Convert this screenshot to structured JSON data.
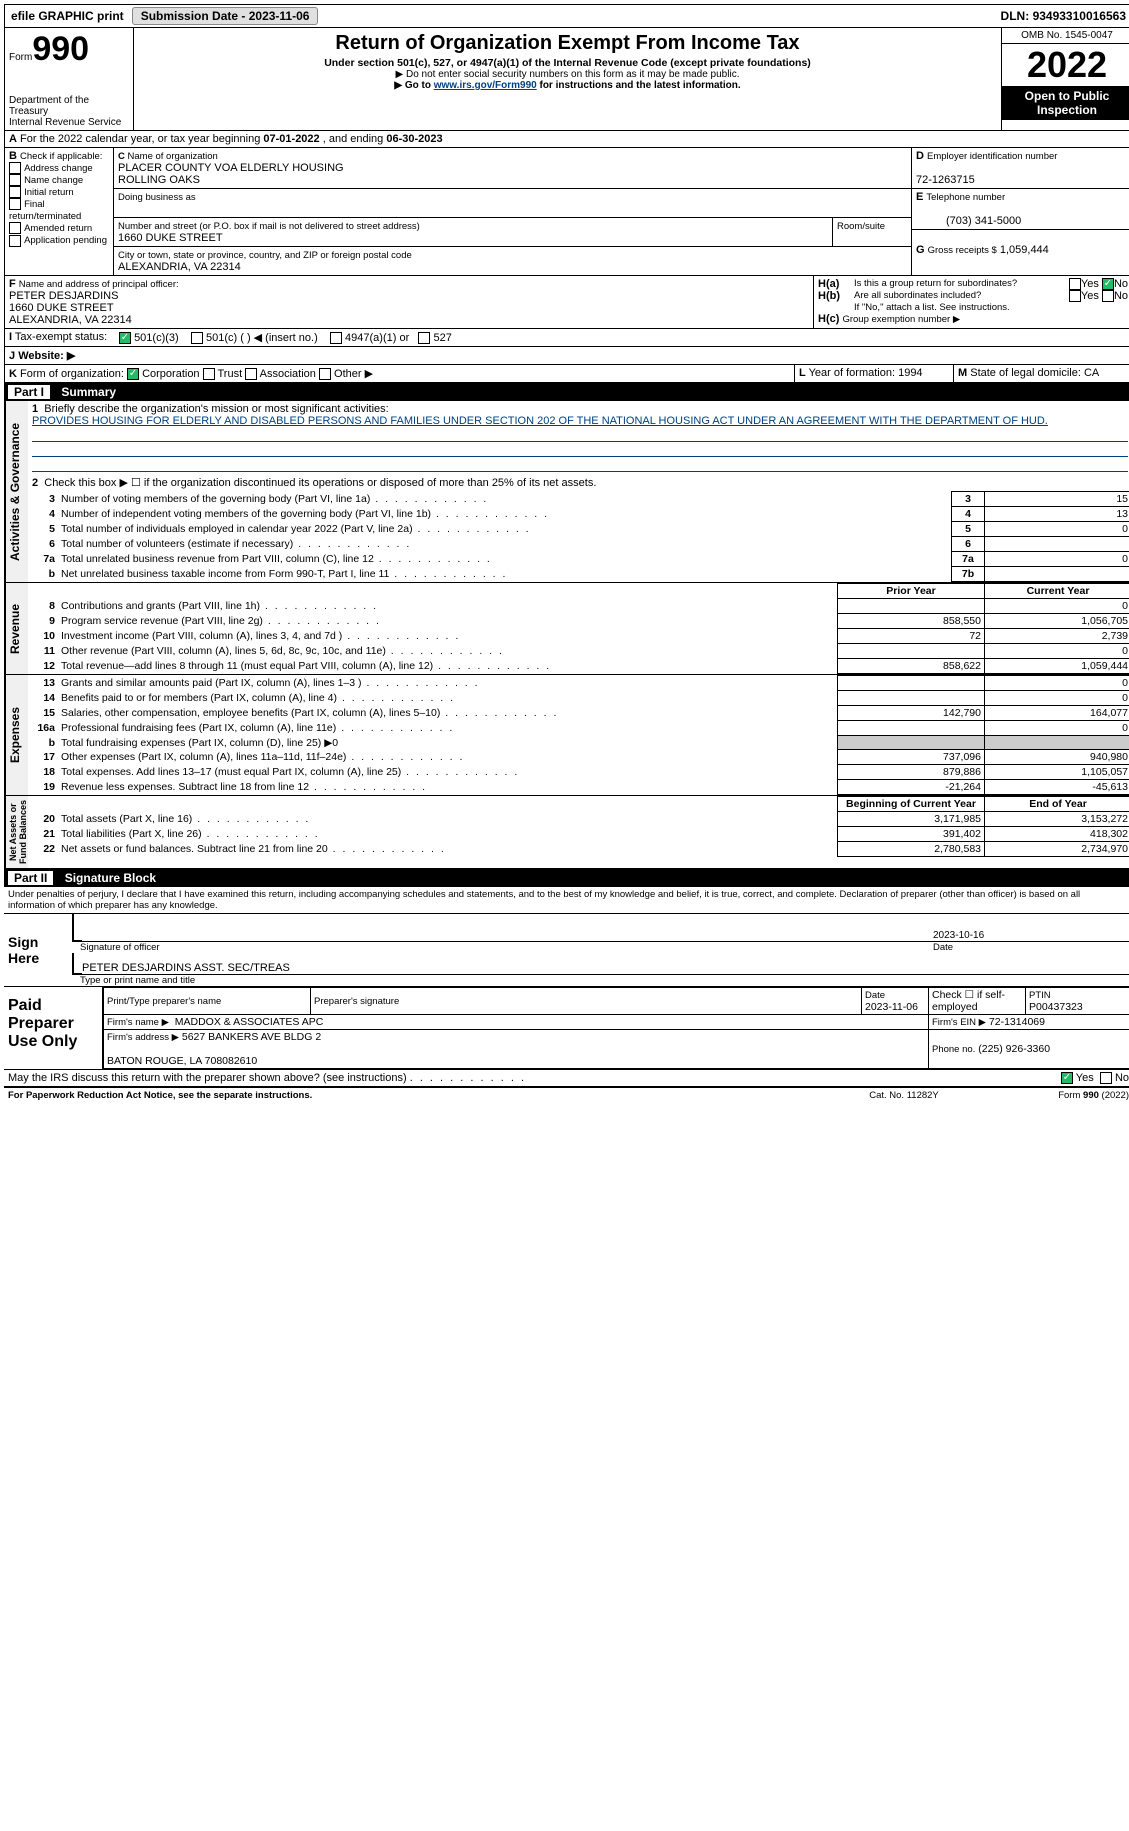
{
  "topbar": {
    "efile": "efile GRAPHIC print",
    "submission_label": "Submission Date -",
    "submission_date": "2023-11-06",
    "dln_label": "DLN:",
    "dln": "93493310016563"
  },
  "header": {
    "form_label": "Form",
    "form_number": "990",
    "dept": "Department of the Treasury\nInternal Revenue Service",
    "title": "Return of Organization Exempt From Income Tax",
    "subtitle": "Under section 501(c), 527, or 4947(a)(1) of the Internal Revenue Code (except private foundations)",
    "note1": "▶ Do not enter social security numbers on this form as it may be made public.",
    "note2_pre": "▶ Go to ",
    "note2_link": "www.irs.gov/Form990",
    "note2_post": " for instructions and the latest information.",
    "omb_label": "OMB No. 1545-0047",
    "year": "2022",
    "open": "Open to Public Inspection"
  },
  "A": {
    "text": "For the 2022 calendar year, or tax year beginning ",
    "begin": "07-01-2022",
    "mid": ", and ending ",
    "end": "06-30-2023"
  },
  "B": {
    "label": "Check if applicable:",
    "items": [
      "Address change",
      "Name change",
      "Initial return",
      "Final return/terminated",
      "Amended return",
      "Application pending"
    ]
  },
  "C": {
    "name_label": "Name of organization",
    "name": "PLACER COUNTY VOA ELDERLY HOUSING\nROLLING OAKS",
    "dba_label": "Doing business as",
    "addr_label": "Number and street (or P.O. box if mail is not delivered to street address)",
    "addr": "1660 DUKE STREET",
    "room_label": "Room/suite",
    "city_label": "City or town, state or province, country, and ZIP or foreign postal code",
    "city": "ALEXANDRIA, VA  22314"
  },
  "D": {
    "label": "Employer identification number",
    "val": "72-1263715"
  },
  "E": {
    "label": "Telephone number",
    "val": "(703) 341-5000"
  },
  "G": {
    "label": "Gross receipts $",
    "val": "1,059,444"
  },
  "F": {
    "label": "Name and address of principal officer:",
    "name": "PETER DESJARDINS",
    "addr1": "1660 DUKE STREET",
    "addr2": "ALEXANDRIA, VA  22314"
  },
  "H": {
    "a": "Is this a group return for subordinates?",
    "b": "Are all subordinates included?",
    "b_note": "If \"No,\" attach a list. See instructions.",
    "c": "Group exemption number ▶",
    "yes": "Yes",
    "no": "No"
  },
  "I": {
    "label": "Tax-exempt status:",
    "opts": [
      "501(c)(3)",
      "501(c) (  ) ◀ (insert no.)",
      "4947(a)(1) or",
      "527"
    ]
  },
  "J": {
    "label": "Website: ▶"
  },
  "K": {
    "label": "Form of organization:",
    "opts": [
      "Corporation",
      "Trust",
      "Association",
      "Other ▶"
    ]
  },
  "L": {
    "label": "Year of formation:",
    "val": "1994"
  },
  "M": {
    "label": "State of legal domicile:",
    "val": "CA"
  },
  "part1": {
    "title": "Part I",
    "name": "Summary",
    "q1_label": "Briefly describe the organization's mission or most significant activities:",
    "q1": "PROVIDES HOUSING FOR ELDERLY AND DISABLED PERSONS AND FAMILIES UNDER SECTION 202 OF THE NATIONAL HOUSING ACT UNDER AN AGREEMENT WITH THE DEPARTMENT OF HUD.",
    "q2": "Check this box ▶ ☐ if the organization discontinued its operations or disposed of more than 25% of its net assets.",
    "rows_gov": [
      {
        "n": "3",
        "t": "Number of voting members of the governing body (Part VI, line 1a)",
        "b": "3",
        "v": "15"
      },
      {
        "n": "4",
        "t": "Number of independent voting members of the governing body (Part VI, line 1b)",
        "b": "4",
        "v": "13"
      },
      {
        "n": "5",
        "t": "Total number of individuals employed in calendar year 2022 (Part V, line 2a)",
        "b": "5",
        "v": "0"
      },
      {
        "n": "6",
        "t": "Total number of volunteers (estimate if necessary)",
        "b": "6",
        "v": ""
      },
      {
        "n": "7a",
        "t": "Total unrelated business revenue from Part VIII, column (C), line 12",
        "b": "7a",
        "v": "0"
      },
      {
        "n": "b",
        "t": "Net unrelated business taxable income from Form 990-T, Part I, line 11",
        "b": "7b",
        "v": ""
      }
    ],
    "col_prior": "Prior Year",
    "col_current": "Current Year",
    "rev": [
      {
        "n": "8",
        "t": "Contributions and grants (Part VIII, line 1h)",
        "p": "",
        "c": "0"
      },
      {
        "n": "9",
        "t": "Program service revenue (Part VIII, line 2g)",
        "p": "858,550",
        "c": "1,056,705"
      },
      {
        "n": "10",
        "t": "Investment income (Part VIII, column (A), lines 3, 4, and 7d )",
        "p": "72",
        "c": "2,739"
      },
      {
        "n": "11",
        "t": "Other revenue (Part VIII, column (A), lines 5, 6d, 8c, 9c, 10c, and 11e)",
        "p": "",
        "c": "0"
      },
      {
        "n": "12",
        "t": "Total revenue—add lines 8 through 11 (must equal Part VIII, column (A), line 12)",
        "p": "858,622",
        "c": "1,059,444"
      }
    ],
    "exp": [
      {
        "n": "13",
        "t": "Grants and similar amounts paid (Part IX, column (A), lines 1–3 )",
        "p": "",
        "c": "0"
      },
      {
        "n": "14",
        "t": "Benefits paid to or for members (Part IX, column (A), line 4)",
        "p": "",
        "c": "0"
      },
      {
        "n": "15",
        "t": "Salaries, other compensation, employee benefits (Part IX, column (A), lines 5–10)",
        "p": "142,790",
        "c": "164,077"
      },
      {
        "n": "16a",
        "t": "Professional fundraising fees (Part IX, column (A), line 11e)",
        "p": "",
        "c": "0"
      },
      {
        "n": "b",
        "t": "Total fundraising expenses (Part IX, column (D), line 25) ▶0",
        "p": "GREY",
        "c": "GREY"
      },
      {
        "n": "17",
        "t": "Other expenses (Part IX, column (A), lines 11a–11d, 11f–24e)",
        "p": "737,096",
        "c": "940,980"
      },
      {
        "n": "18",
        "t": "Total expenses. Add lines 13–17 (must equal Part IX, column (A), line 25)",
        "p": "879,886",
        "c": "1,105,057"
      },
      {
        "n": "19",
        "t": "Revenue less expenses. Subtract line 18 from line 12",
        "p": "-21,264",
        "c": "-45,613"
      }
    ],
    "col_begin": "Beginning of Current Year",
    "col_end": "End of Year",
    "net": [
      {
        "n": "20",
        "t": "Total assets (Part X, line 16)",
        "p": "3,171,985",
        "c": "3,153,272"
      },
      {
        "n": "21",
        "t": "Total liabilities (Part X, line 26)",
        "p": "391,402",
        "c": "418,302"
      },
      {
        "n": "22",
        "t": "Net assets or fund balances. Subtract line 21 from line 20",
        "p": "2,780,583",
        "c": "2,734,970"
      }
    ],
    "vlabels": {
      "gov": "Activities & Governance",
      "rev": "Revenue",
      "exp": "Expenses",
      "net": "Net Assets or\nFund Balances"
    }
  },
  "part2": {
    "title": "Part II",
    "name": "Signature Block",
    "penalty": "Under penalties of perjury, I declare that I have examined this return, including accompanying schedules and statements, and to the best of my knowledge and belief, it is true, correct, and complete. Declaration of preparer (other than officer) is based on all information of which preparer has any knowledge.",
    "sign_here": "Sign Here",
    "sig_officer": "Signature of officer",
    "sig_date": "2023-10-16",
    "date_label": "Date",
    "officer_name": "PETER DESJARDINS  ASST. SEC/TREAS",
    "officer_label": "Type or print name and title",
    "paid": "Paid Preparer Use Only",
    "prep_name_label": "Print/Type preparer's name",
    "prep_sig_label": "Preparer's signature",
    "prep_date_label": "Date",
    "prep_date": "2023-11-06",
    "check_self": "Check ☐ if self-employed",
    "ptin_label": "PTIN",
    "ptin": "P00437323",
    "firm_name_label": "Firm's name    ▶",
    "firm_name": "MADDOX & ASSOCIATES APC",
    "firm_ein_label": "Firm's EIN ▶",
    "firm_ein": "72-1314069",
    "firm_addr_label": "Firm's address ▶",
    "firm_addr": "5627 BANKERS AVE BLDG 2\n\nBATON ROUGE, LA  708082610",
    "phone_label": "Phone no.",
    "phone": "(225) 926-3360",
    "discuss": "May the IRS discuss this return with the preparer shown above? (see instructions)",
    "paperwork": "For Paperwork Reduction Act Notice, see the separate instructions.",
    "cat": "Cat. No. 11282Y",
    "form_foot": "Form 990 (2022)"
  },
  "styling": {
    "link_color": "#004080",
    "header_bg": "#000000",
    "header_fg": "#ffffff",
    "checked_color": "#22bb66",
    "grey_cell": "#cccccc",
    "font_body": 11,
    "font_title": 20,
    "font_year": 36
  }
}
